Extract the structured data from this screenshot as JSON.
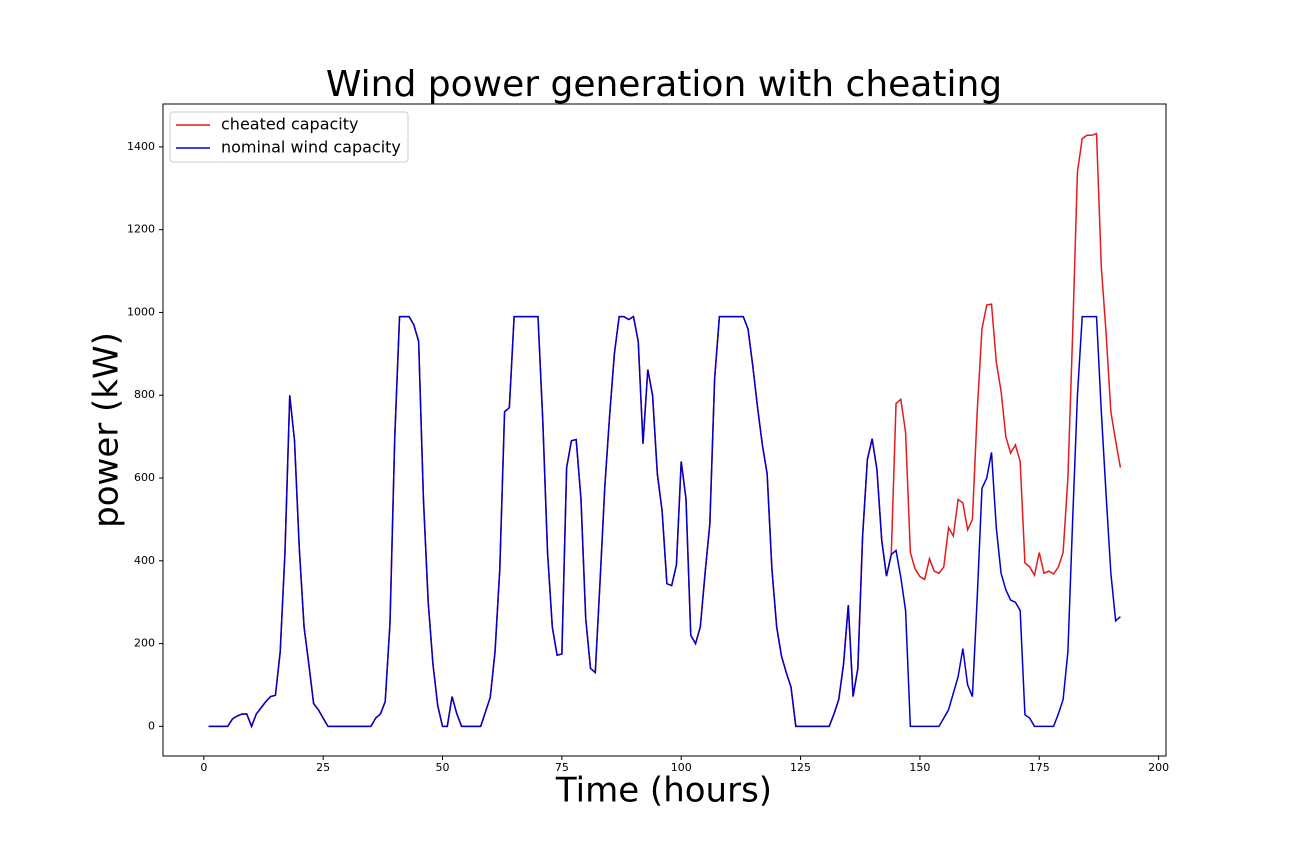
{
  "chart_data": {
    "type": "line",
    "title": "Wind power generation with cheating",
    "xlabel": "Time (hours)",
    "ylabel": "power (kW)",
    "x": [
      1,
      2,
      3,
      4,
      5,
      6,
      7,
      8,
      9,
      10,
      11,
      12,
      13,
      14,
      15,
      16,
      17,
      18,
      19,
      20,
      21,
      22,
      23,
      24,
      25,
      26,
      27,
      28,
      29,
      30,
      31,
      32,
      33,
      34,
      35,
      36,
      37,
      38,
      39,
      40,
      41,
      42,
      43,
      44,
      45,
      46,
      47,
      48,
      49,
      50,
      51,
      52,
      53,
      54,
      55,
      56,
      57,
      58,
      59,
      60,
      61,
      62,
      63,
      64,
      65,
      66,
      67,
      68,
      69,
      70,
      71,
      72,
      73,
      74,
      75,
      76,
      77,
      78,
      79,
      80,
      81,
      82,
      83,
      84,
      85,
      86,
      87,
      88,
      89,
      90,
      91,
      92,
      93,
      94,
      95,
      96,
      97,
      98,
      99,
      100,
      101,
      102,
      103,
      104,
      105,
      106,
      107,
      108,
      109,
      110,
      111,
      112,
      113,
      114,
      115,
      116,
      117,
      118,
      119,
      120,
      121,
      122,
      123,
      124,
      125,
      126,
      127,
      128,
      129,
      130,
      131,
      132,
      133,
      134,
      135,
      136,
      137,
      138,
      139,
      140,
      141,
      142,
      143,
      144,
      145,
      146,
      147,
      148,
      149,
      150,
      151,
      152,
      153,
      154,
      155,
      156,
      157,
      158,
      159,
      160,
      161,
      162,
      163,
      164,
      165,
      166,
      167,
      168,
      169,
      170,
      171,
      172,
      173,
      174,
      175,
      176,
      177,
      178,
      179,
      180,
      181,
      182,
      183,
      184,
      185,
      186,
      187,
      188,
      189,
      190,
      191,
      192
    ],
    "series": [
      {
        "name": "cheated capacity",
        "color": "#e41a1c",
        "values": [
          0,
          0,
          0,
          0,
          0,
          18,
          25,
          30,
          30,
          0,
          30,
          45,
          60,
          72,
          75,
          180,
          420,
          800,
          690,
          430,
          240,
          150,
          55,
          40,
          20,
          0,
          0,
          0,
          0,
          0,
          0,
          0,
          0,
          0,
          0,
          20,
          30,
          60,
          250,
          700,
          990,
          990,
          990,
          970,
          930,
          550,
          300,
          150,
          50,
          0,
          0,
          72,
          30,
          0,
          0,
          0,
          0,
          0,
          35,
          70,
          180,
          380,
          760,
          770,
          990,
          990,
          990,
          990,
          990,
          990,
          740,
          420,
          240,
          172,
          175,
          625,
          690,
          693,
          550,
          260,
          140,
          130,
          350,
          580,
          750,
          900,
          990,
          990,
          983,
          990,
          930,
          683,
          862,
          800,
          610,
          520,
          345,
          340,
          390,
          640,
          550,
          220,
          200,
          240,
          370,
          490,
          840,
          990,
          990,
          990,
          990,
          990,
          990,
          960,
          870,
          770,
          680,
          610,
          380,
          240,
          170,
          130,
          95,
          0,
          0,
          0,
          0,
          0,
          0,
          0,
          0,
          30,
          65,
          150,
          293,
          72,
          140,
          460,
          645,
          695,
          620,
          450,
          363,
          415,
          780,
          790,
          710,
          420,
          380,
          362,
          355,
          405,
          375,
          370,
          385,
          480,
          460,
          548,
          540,
          475,
          500,
          760,
          960,
          1018,
          1020,
          880,
          810,
          700,
          660,
          680,
          640,
          395,
          385,
          365,
          420,
          370,
          375,
          368,
          385,
          420,
          600,
          950,
          1340,
          1420,
          1428,
          1428,
          1432,
          1110,
          950,
          760,
          690,
          625
        ]
      },
      {
        "name": "nominal wind capacity",
        "color": "#0000cd",
        "values": [
          0,
          0,
          0,
          0,
          0,
          18,
          25,
          30,
          30,
          0,
          30,
          45,
          60,
          72,
          75,
          180,
          420,
          800,
          690,
          430,
          240,
          150,
          55,
          40,
          20,
          0,
          0,
          0,
          0,
          0,
          0,
          0,
          0,
          0,
          0,
          20,
          30,
          60,
          250,
          700,
          990,
          990,
          990,
          970,
          930,
          550,
          300,
          150,
          50,
          0,
          0,
          72,
          30,
          0,
          0,
          0,
          0,
          0,
          35,
          70,
          180,
          380,
          760,
          770,
          990,
          990,
          990,
          990,
          990,
          990,
          740,
          420,
          240,
          172,
          175,
          625,
          690,
          693,
          550,
          260,
          140,
          130,
          350,
          580,
          750,
          900,
          990,
          990,
          983,
          990,
          930,
          683,
          862,
          800,
          610,
          520,
          345,
          340,
          390,
          640,
          550,
          220,
          200,
          240,
          370,
          490,
          840,
          990,
          990,
          990,
          990,
          990,
          990,
          960,
          870,
          770,
          680,
          610,
          380,
          240,
          170,
          130,
          95,
          0,
          0,
          0,
          0,
          0,
          0,
          0,
          0,
          30,
          65,
          150,
          293,
          72,
          140,
          460,
          645,
          695,
          620,
          450,
          363,
          415,
          425,
          360,
          280,
          0,
          0,
          0,
          0,
          0,
          0,
          0,
          20,
          40,
          80,
          120,
          188,
          100,
          72,
          310,
          575,
          600,
          662,
          480,
          370,
          330,
          305,
          300,
          280,
          28,
          20,
          0,
          0,
          0,
          0,
          0,
          30,
          65,
          180,
          500,
          800,
          990,
          990,
          990,
          990,
          760,
          560,
          370,
          255,
          265
        ]
      }
    ],
    "xlim": [
      -8.55,
      201.55
    ],
    "ylim": [
      -71.6,
      1503.6
    ],
    "xticks": [
      0,
      25,
      50,
      75,
      100,
      125,
      150,
      175,
      200
    ],
    "yticks": [
      0,
      200,
      400,
      600,
      800,
      1000,
      1200,
      1400
    ],
    "legend": "upper left"
  }
}
